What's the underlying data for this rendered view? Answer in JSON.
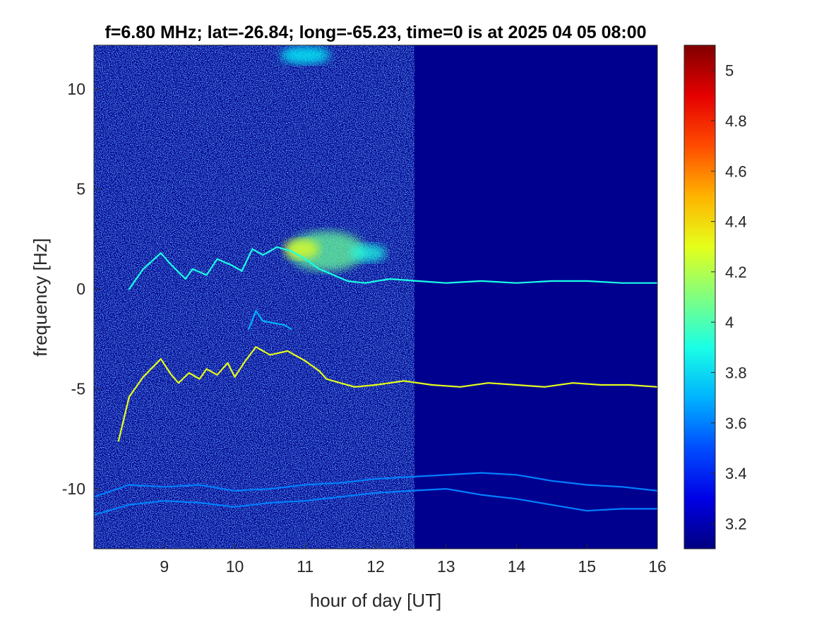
{
  "chart_data": {
    "type": "heatmap",
    "title": "f=6.80 MHz;  lat=-26.84; long=-65.23, time=0 is at 2025 04 05 08:00",
    "xlabel": "hour of day [UT]",
    "ylabel": "frequency [Hz]",
    "xlim": [
      8,
      16
    ],
    "ylim": [
      -13,
      12.2
    ],
    "x_ticks": [
      9,
      10,
      11,
      12,
      13,
      14,
      15,
      16
    ],
    "x_tick_labels": [
      "9",
      "10",
      "11",
      "12",
      "13",
      "14",
      "15",
      "16"
    ],
    "y_ticks": [
      10,
      5,
      0,
      -5,
      -10
    ],
    "y_tick_labels": [
      "10",
      "5",
      "0",
      "-5",
      "-10"
    ],
    "colorbar": {
      "colormap": "jet",
      "clim": [
        3.1,
        5.1
      ],
      "ticks": [
        5,
        4.8,
        4.6,
        4.4,
        4.2,
        4,
        3.8,
        3.6,
        3.4,
        3.2
      ],
      "tick_labels": [
        "5",
        "4.8",
        "4.6",
        "4.4",
        "4.2",
        "4",
        "3.8",
        "3.6",
        "3.4",
        "3.2"
      ]
    },
    "background_value": 3.1,
    "noise_region": {
      "x_range": [
        8,
        12.55
      ],
      "note": "speckled noise floor"
    },
    "series": [
      {
        "value": 4.3,
        "points": [
          [
            8.35,
            -7.6
          ],
          [
            8.5,
            -5.4
          ],
          [
            8.7,
            -4.4
          ],
          [
            8.95,
            -3.5
          ],
          [
            9.1,
            -4.3
          ],
          [
            9.2,
            -4.7
          ],
          [
            9.35,
            -4.2
          ],
          [
            9.5,
            -4.5
          ],
          [
            9.6,
            -4.0
          ],
          [
            9.75,
            -4.3
          ],
          [
            9.9,
            -3.7
          ],
          [
            10.0,
            -4.4
          ],
          [
            10.15,
            -3.6
          ],
          [
            10.3,
            -2.9
          ],
          [
            10.5,
            -3.3
          ],
          [
            10.75,
            -3.1
          ],
          [
            11.0,
            -3.6
          ],
          [
            11.2,
            -4.1
          ],
          [
            11.3,
            -4.5
          ],
          [
            11.5,
            -4.7
          ],
          [
            11.7,
            -4.9
          ],
          [
            12.0,
            -4.8
          ],
          [
            12.4,
            -4.6
          ],
          [
            12.8,
            -4.8
          ],
          [
            13.2,
            -4.9
          ],
          [
            13.6,
            -4.7
          ],
          [
            14.0,
            -4.8
          ],
          [
            14.4,
            -4.9
          ],
          [
            14.8,
            -4.7
          ],
          [
            15.2,
            -4.8
          ],
          [
            15.6,
            -4.8
          ],
          [
            16.0,
            -4.9
          ]
        ]
      },
      {
        "value": 3.9,
        "points": [
          [
            8.5,
            0.0
          ],
          [
            8.7,
            1.0
          ],
          [
            8.95,
            1.8
          ],
          [
            9.1,
            1.2
          ],
          [
            9.3,
            0.5
          ],
          [
            9.4,
            1.0
          ],
          [
            9.6,
            0.7
          ],
          [
            9.75,
            1.5
          ],
          [
            9.95,
            1.2
          ],
          [
            10.1,
            0.9
          ],
          [
            10.25,
            2.0
          ],
          [
            10.4,
            1.7
          ],
          [
            10.6,
            2.1
          ],
          [
            10.8,
            1.9
          ],
          [
            11.0,
            1.5
          ],
          [
            11.2,
            1.0
          ],
          [
            11.4,
            0.7
          ],
          [
            11.6,
            0.4
          ],
          [
            11.85,
            0.3
          ],
          [
            12.2,
            0.5
          ],
          [
            12.6,
            0.4
          ],
          [
            13.0,
            0.3
          ],
          [
            13.5,
            0.4
          ],
          [
            14.0,
            0.3
          ],
          [
            14.5,
            0.4
          ],
          [
            15.0,
            0.4
          ],
          [
            15.5,
            0.3
          ],
          [
            16.0,
            0.3
          ]
        ]
      },
      {
        "value": 3.6,
        "points": [
          [
            8.0,
            -10.4
          ],
          [
            8.5,
            -9.8
          ],
          [
            9.0,
            -9.9
          ],
          [
            9.5,
            -9.8
          ],
          [
            10.0,
            -10.1
          ],
          [
            10.5,
            -10.0
          ],
          [
            11.0,
            -9.8
          ],
          [
            11.5,
            -9.7
          ],
          [
            12.0,
            -9.5
          ],
          [
            12.5,
            -9.4
          ],
          [
            13.0,
            -9.3
          ],
          [
            13.5,
            -9.2
          ],
          [
            14.0,
            -9.3
          ],
          [
            14.5,
            -9.6
          ],
          [
            15.0,
            -9.8
          ],
          [
            15.5,
            -9.9
          ],
          [
            16.0,
            -10.1
          ]
        ]
      },
      {
        "value": 3.6,
        "points": [
          [
            8.0,
            -11.3
          ],
          [
            8.5,
            -10.8
          ],
          [
            9.0,
            -10.6
          ],
          [
            9.5,
            -10.7
          ],
          [
            10.0,
            -10.9
          ],
          [
            10.5,
            -10.7
          ],
          [
            11.0,
            -10.6
          ],
          [
            11.5,
            -10.4
          ],
          [
            12.0,
            -10.2
          ],
          [
            12.5,
            -10.1
          ],
          [
            13.0,
            -10.0
          ],
          [
            13.5,
            -10.3
          ],
          [
            14.0,
            -10.5
          ],
          [
            14.5,
            -10.8
          ],
          [
            15.0,
            -11.1
          ],
          [
            15.5,
            -11.0
          ],
          [
            16.0,
            -11.0
          ]
        ]
      },
      {
        "value": 3.7,
        "points": [
          [
            10.2,
            -2.0
          ],
          [
            10.3,
            -1.1
          ],
          [
            10.4,
            -1.6
          ],
          [
            10.55,
            -1.7
          ],
          [
            10.7,
            -1.8
          ],
          [
            10.8,
            -2.0
          ]
        ]
      }
    ],
    "blobs": [
      {
        "x": 11.3,
        "y": 1.9,
        "rx": 0.55,
        "ry": 1.0,
        "value": 4.05
      },
      {
        "x": 10.95,
        "y": 2.0,
        "rx": 0.25,
        "ry": 0.5,
        "value": 4.3
      },
      {
        "x": 11.9,
        "y": 1.8,
        "rx": 0.25,
        "ry": 0.45,
        "value": 3.9
      },
      {
        "x": 11.0,
        "y": 11.7,
        "rx": 0.35,
        "ry": 0.45,
        "value": 3.85
      }
    ]
  }
}
